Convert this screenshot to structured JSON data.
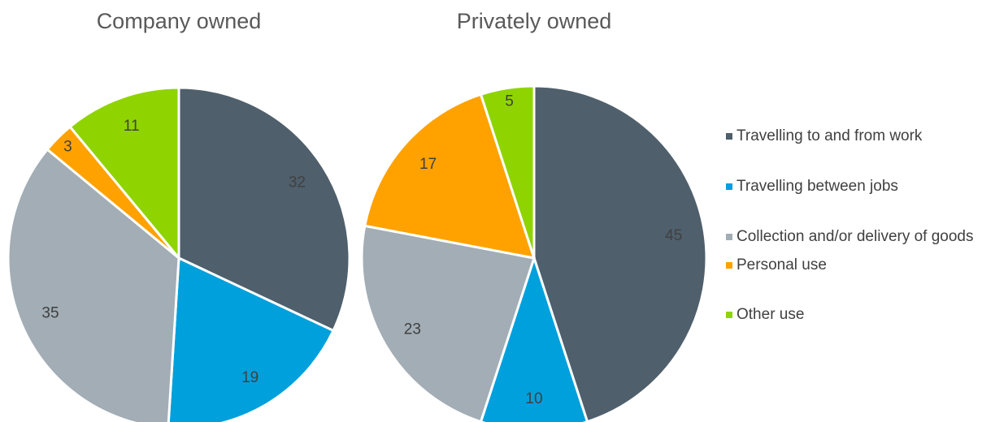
{
  "chart_data": [
    {
      "type": "pie",
      "title": "Company owned",
      "categories": [
        "Travelling to and from work",
        "Travelling between jobs",
        "Collection and/or delivery of goods",
        "Personal use",
        "Other use"
      ],
      "values": [
        32,
        19,
        35,
        3,
        11
      ],
      "colors": [
        "#4f5f6c",
        "#00a0dc",
        "#a2adb5",
        "#ffa200",
        "#8fd400"
      ]
    },
    {
      "type": "pie",
      "title": "Privately owned",
      "categories": [
        "Travelling to and from work",
        "Travelling between jobs",
        "Collection and/or delivery of goods",
        "Personal use",
        "Other use"
      ],
      "values": [
        45,
        10,
        23,
        17,
        5
      ],
      "colors": [
        "#4f5f6c",
        "#00a0dc",
        "#a2adb5",
        "#ffa200",
        "#8fd400"
      ]
    }
  ]
}
